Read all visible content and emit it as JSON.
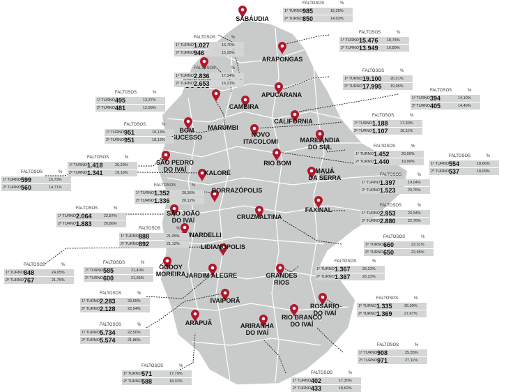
{
  "header_faltosos": "FALTOSOS",
  "header_pct": "%",
  "turno1_label": "1º TURNO",
  "turno2_label": "2º TURNO",
  "municipalities": [
    {
      "name1": "SABÁUDIA",
      "name2": "",
      "t1": "985",
      "p1": "16,26%",
      "t2": "850",
      "p2": "14,03%"
    },
    {
      "name1": "ARAPONGAS",
      "name2": "",
      "t1": "15.476",
      "p1": "18,74%",
      "t2": "13.949",
      "p2": "16,89%"
    },
    {
      "name1": "JANDAIA",
      "name2": "DO SUL",
      "t1": "1.027",
      "p1": "16,70%",
      "t2": "946",
      "p2": "15,39%"
    },
    {
      "name1": "CAMBIRA",
      "name2": "",
      "t1": "2.836",
      "p1": "17,34%",
      "t2": "2.653",
      "p2": "16,21%"
    },
    {
      "name1": "APUCARANA",
      "name2": "",
      "t1": "19.100",
      "p1": "20,21%",
      "t2": "17.995",
      "p2": "19,05%"
    },
    {
      "name1": "MARUMBI",
      "name2": "",
      "t1": "495",
      "p1": "13,37%",
      "t2": "481",
      "p2": "12,99%"
    },
    {
      "name1": "CALIFÓRNIA",
      "name2": "",
      "t1": "394",
      "p1": "14,10%",
      "t2": "405",
      "p2": "14,49%"
    },
    {
      "name1": "NOVO",
      "name2": "ITACOLOMI",
      "t1": "1.188",
      "p1": "17,30%",
      "t2": "1.107",
      "p2": "16,11%"
    },
    {
      "name1": "BOM",
      "name2": "SUCESSO",
      "t1": "951",
      "p1": "18,13%",
      "t2": "951",
      "p2": "18,13%"
    },
    {
      "name1": "MARILÂNDIA",
      "name2": "DO SUL",
      "t1": "1.452",
      "p1": "20,06%",
      "t2": "1.440",
      "p2": "19,90%"
    },
    {
      "name1": "SÃO PEDRO",
      "name2": "DO IVAÍ",
      "t1": "1.418",
      "p1": "20,29%",
      "t2": "1.341",
      "p2": "19,18%"
    },
    {
      "name1": "RIO BOM",
      "name2": "",
      "t1": "554",
      "p1": "18,66%",
      "t2": "537",
      "p2": "18,09%"
    },
    {
      "name1": "KALORÉ",
      "name2": "",
      "t1": "599",
      "p1": "15,73%",
      "t2": "560",
      "p2": "14,71%"
    },
    {
      "name1": "MAUÁ",
      "name2": "DA SERRA",
      "t1": "1.397",
      "p1": "19,04%",
      "t2": "1.523",
      "p2": "20,76%"
    },
    {
      "name1": "BORRAZÓPOLIS",
      "name2": "",
      "t1": "1.352",
      "p1": "20,36%",
      "t2": "1.336",
      "p2": "20,12%"
    },
    {
      "name1": "FAXINAL",
      "name2": "",
      "t1": "2.953",
      "p1": "23,34%",
      "t2": "2.880",
      "p2": "22,76%"
    },
    {
      "name1": "SÃO JOÃO",
      "name2": "DO IVAÍ",
      "t1": "2.064",
      "p1": "22,87%",
      "t2": "1.883",
      "p2": "20,86%"
    },
    {
      "name1": "CRUZMALTINA",
      "name2": "",
      "t1": "660",
      "p1": "23,31%",
      "t2": "650",
      "p2": "22,95%"
    },
    {
      "name1": "LUNARDELLI",
      "name2": "",
      "t1": "888",
      "p1": "21,05%",
      "t2": "892",
      "p2": "21,12%"
    },
    {
      "name1": "LIDIANÓPOLIS",
      "name2": "",
      "t1": "848",
      "p1": "24,05%",
      "t2": "767",
      "p2": "21,75%"
    },
    {
      "name1": "GODOY",
      "name2": "MOREIRA",
      "t1": "585",
      "p1": "21,40%",
      "t2": "600",
      "p2": "21,95%"
    },
    {
      "name1": "GRANDES",
      "name2": "RIOS",
      "t1": "1.367",
      "p1": "26,22%",
      "t2": "1.367",
      "p2": "26,22%"
    },
    {
      "name1": "JARDIM ALEGRE",
      "name2": "",
      "t1": "2.283",
      "p1": "23,65%",
      "t2": "2.128",
      "p2": "22,04%"
    },
    {
      "name1": "ROSÁRIO",
      "name2": "DO IVAÍ",
      "t1": "1.335",
      "p1": "26,99%",
      "t2": "1.369",
      "p2": "27,67%"
    },
    {
      "name1": "IVAIPORÃ",
      "name2": "",
      "t1": "5.734",
      "p1": "22,50%",
      "t2": "5.574",
      "p2": "21,86%"
    },
    {
      "name1": "RIO BRANCO",
      "name2": "DO IVAÍ",
      "t1": "908",
      "p1": "25,35%",
      "t2": "971",
      "p2": "27,11%"
    },
    {
      "name1": "ARAPUÃ",
      "name2": "",
      "t1": "571",
      "p1": "17,79%",
      "t2": "588",
      "p2": "18,32%"
    },
    {
      "name1": "ARIRANHA",
      "name2": "DO IVAÍ",
      "t1": "402",
      "p1": "17,30%",
      "t2": "433",
      "p2": "18,62%"
    }
  ]
}
